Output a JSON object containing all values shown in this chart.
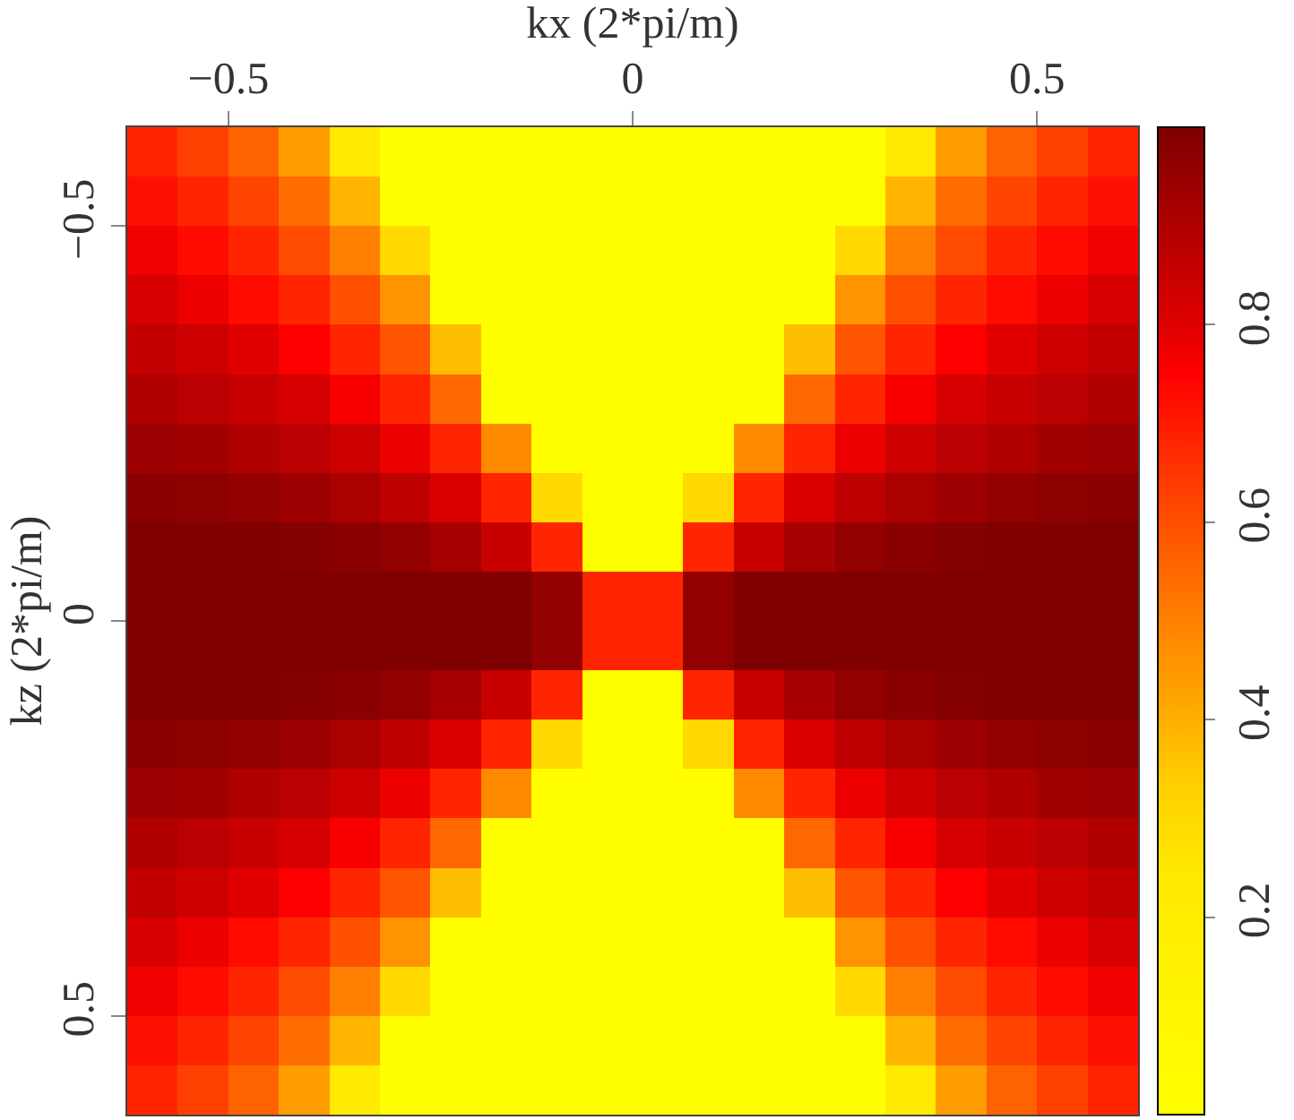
{
  "chart_data": {
    "type": "heatmap",
    "xlabel": "kx (2*pi/m)",
    "ylabel": "kz (2*pi/m)",
    "xlim": [
      -0.625,
      0.625
    ],
    "ylim": [
      0.625,
      -0.625
    ],
    "xticks": [
      -0.5,
      0,
      0.5
    ],
    "yticks": [
      -0.5,
      0,
      0.5
    ],
    "clim": [
      0,
      1
    ],
    "cticks": [
      0.2,
      0.4,
      0.6,
      0.8
    ],
    "cells": [
      [
        0.68,
        0.63,
        0.56,
        0.44,
        0.23,
        0,
        0,
        0,
        0,
        0,
        0,
        0,
        0,
        0,
        0,
        0.23,
        0.44,
        0.56,
        0.63,
        0.68
      ],
      [
        0.72,
        0.68,
        0.62,
        0.54,
        0.39,
        0,
        0,
        0,
        0,
        0,
        0,
        0,
        0,
        0,
        0,
        0.39,
        0.54,
        0.62,
        0.68,
        0.72
      ],
      [
        0.77,
        0.73,
        0.68,
        0.61,
        0.5,
        0.3,
        0,
        0,
        0,
        0,
        0,
        0,
        0,
        0,
        0.3,
        0.5,
        0.61,
        0.68,
        0.73,
        0.77
      ],
      [
        0.82,
        0.78,
        0.73,
        0.68,
        0.6,
        0.46,
        0,
        0,
        0,
        0,
        0,
        0,
        0,
        0,
        0.46,
        0.6,
        0.68,
        0.73,
        0.78,
        0.82
      ],
      [
        0.86,
        0.84,
        0.8,
        0.75,
        0.68,
        0.59,
        0.37,
        0,
        0,
        0,
        0,
        0,
        0,
        0.37,
        0.59,
        0.68,
        0.75,
        0.8,
        0.84,
        0.86
      ],
      [
        0.9,
        0.88,
        0.85,
        0.82,
        0.76,
        0.68,
        0.55,
        0,
        0,
        0,
        0,
        0,
        0,
        0.55,
        0.68,
        0.76,
        0.82,
        0.85,
        0.88,
        0.9
      ],
      [
        0.94,
        0.93,
        0.9,
        0.88,
        0.84,
        0.78,
        0.68,
        0.48,
        0,
        0,
        0,
        0,
        0.48,
        0.68,
        0.78,
        0.84,
        0.88,
        0.9,
        0.93,
        0.94
      ],
      [
        0.98,
        0.97,
        0.96,
        0.94,
        0.91,
        0.87,
        0.81,
        0.68,
        0.3,
        0,
        0,
        0.3,
        0.68,
        0.81,
        0.87,
        0.91,
        0.94,
        0.96,
        0.97,
        0.98
      ],
      [
        1,
        1,
        1,
        0.99,
        0.98,
        0.96,
        0.92,
        0.85,
        0.68,
        0,
        0,
        0.68,
        0.85,
        0.92,
        0.96,
        0.98,
        0.99,
        1,
        1,
        1
      ],
      [
        1,
        1,
        1,
        1,
        1,
        1,
        1,
        1,
        0.96,
        0.68,
        0.68,
        0.96,
        1,
        1,
        1,
        1,
        1,
        1,
        1,
        1
      ],
      [
        1,
        1,
        1,
        1,
        1,
        1,
        1,
        1,
        0.96,
        0.68,
        0.68,
        0.96,
        1,
        1,
        1,
        1,
        1,
        1,
        1,
        1
      ],
      [
        1,
        1,
        1,
        0.99,
        0.98,
        0.96,
        0.92,
        0.85,
        0.68,
        0,
        0,
        0.68,
        0.85,
        0.92,
        0.96,
        0.98,
        0.99,
        1,
        1,
        1
      ],
      [
        0.98,
        0.97,
        0.96,
        0.94,
        0.91,
        0.87,
        0.81,
        0.68,
        0.3,
        0,
        0,
        0.3,
        0.68,
        0.81,
        0.87,
        0.91,
        0.94,
        0.96,
        0.97,
        0.98
      ],
      [
        0.94,
        0.93,
        0.9,
        0.88,
        0.84,
        0.78,
        0.68,
        0.48,
        0,
        0,
        0,
        0,
        0.48,
        0.68,
        0.78,
        0.84,
        0.88,
        0.9,
        0.93,
        0.94
      ],
      [
        0.9,
        0.88,
        0.85,
        0.82,
        0.76,
        0.68,
        0.55,
        0,
        0,
        0,
        0,
        0,
        0,
        0.55,
        0.68,
        0.76,
        0.82,
        0.85,
        0.88,
        0.9
      ],
      [
        0.86,
        0.84,
        0.8,
        0.75,
        0.68,
        0.59,
        0.37,
        0,
        0,
        0,
        0,
        0,
        0,
        0.37,
        0.59,
        0.68,
        0.75,
        0.8,
        0.84,
        0.86
      ],
      [
        0.82,
        0.78,
        0.73,
        0.68,
        0.6,
        0.46,
        0,
        0,
        0,
        0,
        0,
        0,
        0,
        0,
        0.46,
        0.6,
        0.68,
        0.73,
        0.78,
        0.82
      ],
      [
        0.77,
        0.73,
        0.68,
        0.61,
        0.5,
        0.3,
        0,
        0,
        0,
        0,
        0,
        0,
        0,
        0,
        0.3,
        0.5,
        0.61,
        0.68,
        0.73,
        0.77
      ],
      [
        0.72,
        0.68,
        0.62,
        0.54,
        0.39,
        0,
        0,
        0,
        0,
        0,
        0,
        0,
        0,
        0,
        0,
        0.39,
        0.54,
        0.62,
        0.68,
        0.72
      ],
      [
        0.68,
        0.63,
        0.56,
        0.44,
        0.23,
        0,
        0,
        0,
        0,
        0,
        0,
        0,
        0,
        0,
        0,
        0.23,
        0.44,
        0.56,
        0.63,
        0.68
      ]
    ]
  }
}
